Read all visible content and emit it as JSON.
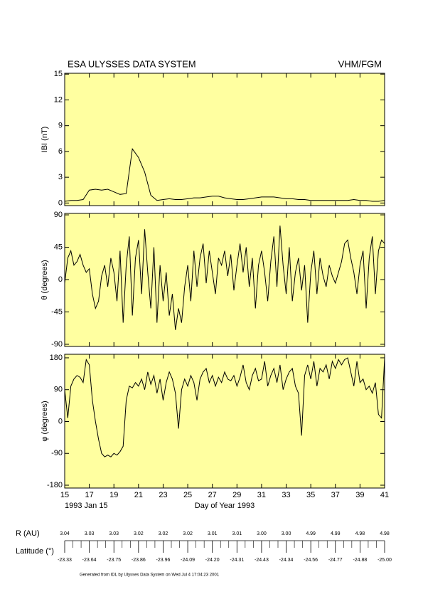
{
  "header": {
    "title": "ESA ULYSSES DATA SYSTEM",
    "instrument": "VHM/FGM"
  },
  "chart_data": [
    {
      "type": "line",
      "y_label": "IBI (nT)",
      "color": "#000000",
      "xlim": [
        15,
        41
      ],
      "xticks": [
        15,
        17,
        19,
        21,
        23,
        25,
        27,
        29,
        31,
        33,
        35,
        37,
        39,
        41
      ],
      "ylim": [
        -0.3,
        15.1
      ],
      "yticks": [
        0,
        3,
        6,
        9,
        12,
        15
      ],
      "x": [
        15,
        15.5,
        16,
        16.5,
        17,
        17.5,
        18,
        18.5,
        19,
        19.5,
        20,
        20.5,
        21,
        21.5,
        22,
        22.5,
        23,
        23.5,
        24,
        24.5,
        25,
        25.5,
        26,
        26.5,
        27,
        27.5,
        28,
        28.5,
        29,
        29.5,
        30,
        30.5,
        31,
        31.5,
        32,
        32.5,
        33,
        33.5,
        34,
        34.5,
        35,
        35.5,
        36,
        36.5,
        37,
        37.5,
        38,
        38.5,
        39,
        39.5,
        40,
        40.5,
        41
      ],
      "values": [
        0.2,
        0.3,
        0.3,
        0.4,
        1.5,
        1.6,
        1.5,
        1.6,
        1.3,
        1.0,
        1.1,
        6.3,
        5.3,
        3.6,
        0.9,
        0.3,
        0.4,
        0.5,
        0.4,
        0.4,
        0.5,
        0.6,
        0.6,
        0.7,
        0.8,
        0.8,
        0.6,
        0.5,
        0.4,
        0.4,
        0.5,
        0.6,
        0.7,
        0.7,
        0.7,
        0.6,
        0.5,
        0.5,
        0.4,
        0.4,
        0.3,
        0.3,
        0.3,
        0.3,
        0.3,
        0.3,
        0.3,
        0.4,
        0.3,
        0.3,
        0.2,
        0.2,
        0.3
      ]
    },
    {
      "type": "line",
      "y_label": "θ (degrees)",
      "color": "#000000",
      "xlim": [
        15,
        41
      ],
      "xticks": [
        15,
        17,
        19,
        21,
        23,
        25,
        27,
        29,
        31,
        33,
        35,
        37,
        39,
        41
      ],
      "ylim": [
        -93,
        92
      ],
      "yticks": [
        -90,
        -45,
        0,
        45,
        90
      ],
      "x": [
        15,
        15.25,
        15.5,
        15.75,
        16,
        16.25,
        16.5,
        16.75,
        17,
        17.25,
        17.5,
        17.75,
        18,
        18.25,
        18.5,
        18.75,
        19,
        19.25,
        19.5,
        19.75,
        20,
        20.25,
        20.5,
        20.75,
        21,
        21.25,
        21.5,
        21.75,
        22,
        22.25,
        22.5,
        22.75,
        23,
        23.25,
        23.5,
        23.75,
        24,
        24.25,
        24.5,
        24.75,
        25,
        25.25,
        25.5,
        25.75,
        26,
        26.25,
        26.5,
        26.75,
        27,
        27.25,
        27.5,
        27.75,
        28,
        28.25,
        28.5,
        28.75,
        29,
        29.25,
        29.5,
        29.75,
        30,
        30.25,
        30.5,
        30.75,
        31,
        31.25,
        31.5,
        31.75,
        32,
        32.25,
        32.5,
        32.75,
        33,
        33.25,
        33.5,
        33.75,
        34,
        34.25,
        34.5,
        34.75,
        35,
        35.25,
        35.5,
        35.75,
        36,
        36.25,
        36.5,
        36.75,
        37,
        37.25,
        37.5,
        37.75,
        38,
        38.25,
        38.5,
        38.75,
        39,
        39.25,
        39.5,
        39.75,
        40,
        40.25,
        40.5,
        40.75,
        41
      ],
      "values": [
        -5,
        30,
        40,
        20,
        25,
        35,
        20,
        10,
        15,
        -20,
        -40,
        -30,
        5,
        20,
        -10,
        30,
        10,
        -30,
        40,
        -60,
        20,
        60,
        -50,
        30,
        55,
        -20,
        70,
        10,
        -40,
        45,
        -60,
        20,
        -30,
        10,
        -50,
        -20,
        -70,
        -40,
        -60,
        -10,
        20,
        -30,
        40,
        -10,
        30,
        50,
        -5,
        40,
        10,
        -20,
        30,
        20,
        40,
        5,
        35,
        -15,
        20,
        50,
        10,
        45,
        -10,
        30,
        -40,
        20,
        40,
        10,
        -30,
        25,
        60,
        -10,
        75,
        20,
        -20,
        45,
        -30,
        10,
        30,
        -15,
        20,
        -60,
        10,
        40,
        -20,
        30,
        5,
        -10,
        20,
        5,
        -5,
        10,
        25,
        50,
        55,
        30,
        10,
        -20,
        20,
        40,
        -40,
        30,
        60,
        -20,
        40,
        55,
        50
      ]
    },
    {
      "type": "line",
      "y_label": "φ (degrees)",
      "x_label": "Day of Year 1993",
      "start_label": "1993 Jan 15",
      "color": "#000000",
      "xlim": [
        15,
        41
      ],
      "xticks": [
        15,
        17,
        19,
        21,
        23,
        25,
        27,
        29,
        31,
        33,
        35,
        37,
        39,
        41
      ],
      "ylim": [
        -188,
        190
      ],
      "yticks": [
        -180,
        -90,
        0,
        90,
        180
      ],
      "x": [
        15,
        15.25,
        15.5,
        15.75,
        16,
        16.25,
        16.5,
        16.75,
        17,
        17.25,
        17.5,
        17.75,
        18,
        18.25,
        18.5,
        18.75,
        19,
        19.25,
        19.5,
        19.75,
        20,
        20.25,
        20.5,
        20.75,
        21,
        21.25,
        21.5,
        21.75,
        22,
        22.25,
        22.5,
        22.75,
        23,
        23.25,
        23.5,
        23.75,
        24,
        24.25,
        24.5,
        24.75,
        25,
        25.25,
        25.5,
        25.75,
        26,
        26.25,
        26.5,
        26.75,
        27,
        27.25,
        27.5,
        27.75,
        28,
        28.25,
        28.5,
        28.75,
        29,
        29.25,
        29.5,
        29.75,
        30,
        30.25,
        30.5,
        30.75,
        31,
        31.25,
        31.5,
        31.75,
        32,
        32.25,
        32.5,
        32.75,
        33,
        33.25,
        33.5,
        33.75,
        34,
        34.25,
        34.5,
        34.75,
        35,
        35.25,
        35.5,
        35.75,
        36,
        36.25,
        36.5,
        36.75,
        37,
        37.25,
        37.5,
        37.75,
        38,
        38.25,
        38.5,
        38.75,
        39,
        39.25,
        39.5,
        39.75,
        40,
        40.25,
        40.5,
        40.75,
        41
      ],
      "values": [
        90,
        10,
        100,
        120,
        130,
        125,
        110,
        175,
        160,
        60,
        0,
        -50,
        -90,
        -100,
        -95,
        -100,
        -90,
        -95,
        -85,
        -70,
        60,
        100,
        95,
        110,
        100,
        120,
        90,
        140,
        105,
        130,
        80,
        120,
        60,
        110,
        140,
        120,
        80,
        -20,
        90,
        120,
        100,
        130,
        110,
        60,
        120,
        140,
        150,
        110,
        130,
        100,
        125,
        110,
        140,
        120,
        115,
        130,
        100,
        125,
        160,
        110,
        90,
        130,
        150,
        115,
        120,
        170,
        100,
        130,
        150,
        110,
        160,
        90,
        120,
        140,
        150,
        100,
        80,
        -40,
        130,
        160,
        120,
        170,
        100,
        150,
        140,
        160,
        120,
        170,
        150,
        175,
        160,
        175,
        180,
        140,
        100,
        170,
        110,
        120,
        90,
        100,
        80,
        110,
        20,
        10,
        180
      ]
    }
  ],
  "orbit": {
    "r_label": "R (AU)",
    "r_values": [
      "3.04",
      "3.03",
      "3.03",
      "3.02",
      "3.02",
      "3.02",
      "3.01",
      "3.01",
      "3.00",
      "3.00",
      "4.99",
      "4.99",
      "4.98",
      "4.98"
    ],
    "lat_label": "Latitude (°)",
    "lat_values": [
      "-23.33",
      "-23.64",
      "-23.75",
      "-23.86",
      "-23.96",
      "-24.09",
      "-24.20",
      "-24.31",
      "-24.43",
      "-24.34",
      "-24.56",
      "-24.77",
      "-24.88",
      "-25.00"
    ]
  },
  "footer": "Generated from IDL by Ulysses Data System on Wed Jul 4 17:04:23 2001"
}
